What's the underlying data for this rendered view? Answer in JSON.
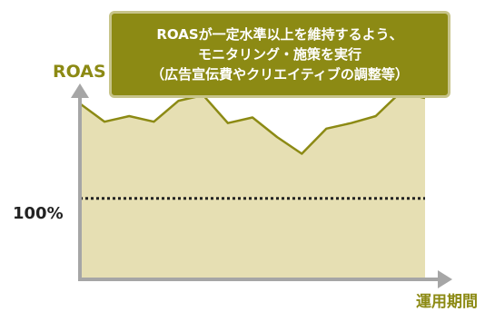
{
  "chart_data": {
    "type": "area",
    "title": "",
    "xlabel": "運用期間",
    "ylabel": "ROAS",
    "x": [
      0,
      1,
      2,
      3,
      4,
      5,
      6,
      7,
      8,
      9,
      10,
      11,
      12,
      13,
      14
    ],
    "values": [
      68,
      55,
      59,
      55,
      70,
      74,
      54,
      58,
      44,
      32,
      50,
      54,
      59,
      76,
      72
    ],
    "reference_line": {
      "label": "100%",
      "value": 0,
      "style": "dotted"
    },
    "ylim": [
      -58,
      72
    ],
    "grid": false,
    "legend": "none",
    "annotation": {
      "lines": [
        "ROASが一定水準以上を維持するよう、",
        "モニタリング・施策を実行",
        "（広告宣伝費やクリエイティブの調整等）"
      ]
    },
    "colors": {
      "accent": "#8c8a14",
      "area_fill": "#e6dfb3",
      "area_stroke": "#8c8a14",
      "axis": "#a6a6a6",
      "callout_border": "#c7c48a",
      "reference_line": "#222222"
    }
  }
}
